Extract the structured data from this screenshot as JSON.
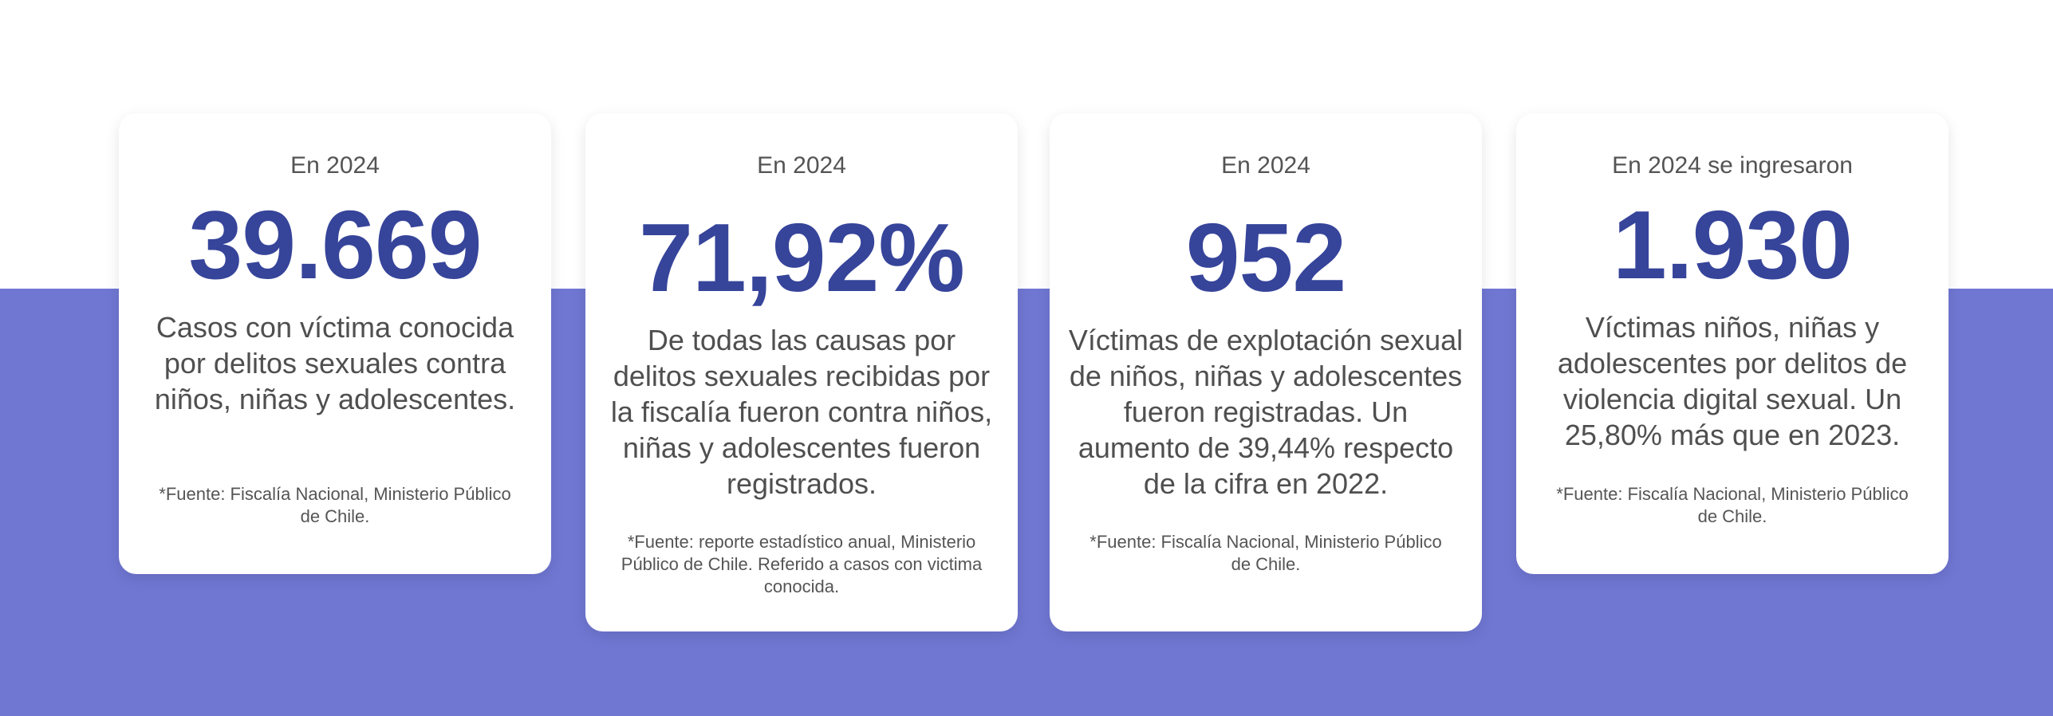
{
  "colors": {
    "band": "#7077d3",
    "accent": "#36449a",
    "card_bg": "#ffffff"
  },
  "cards": [
    {
      "intro": "En 2024",
      "value": "39.669",
      "description": "Casos con víctima conocida por delitos sexuales contra niños, niñas y adolescentes.",
      "source": "*Fuente:  Fiscalía Nacional, Ministerio Público de Chile."
    },
    {
      "intro": "En 2024",
      "value": "71,92%",
      "description": "De todas las causas por delitos sexuales recibidas por la fiscalía fueron contra niños, niñas y adolescentes fueron registrados.",
      "source": "*Fuente: reporte estadístico anual, Ministerio Público de Chile. Referido a casos con victima conocida."
    },
    {
      "intro": "En 2024",
      "value": "952",
      "description": "Víctimas de explotación sexual de niños, niñas y adolescentes fueron registradas. Un aumento de 39,44% respecto de la cifra en 2022.",
      "source": "*Fuente: Fiscalía Nacional, Ministerio Público de Chile."
    },
    {
      "intro": "En 2024 se ingresaron",
      "value": "1.930",
      "description": "Víctimas niños, niñas y adolescentes por delitos de violencia digital sexual. Un 25,80% más que en 2023.",
      "source": "*Fuente: Fiscalía Nacional, Ministerio Público de Chile."
    }
  ]
}
